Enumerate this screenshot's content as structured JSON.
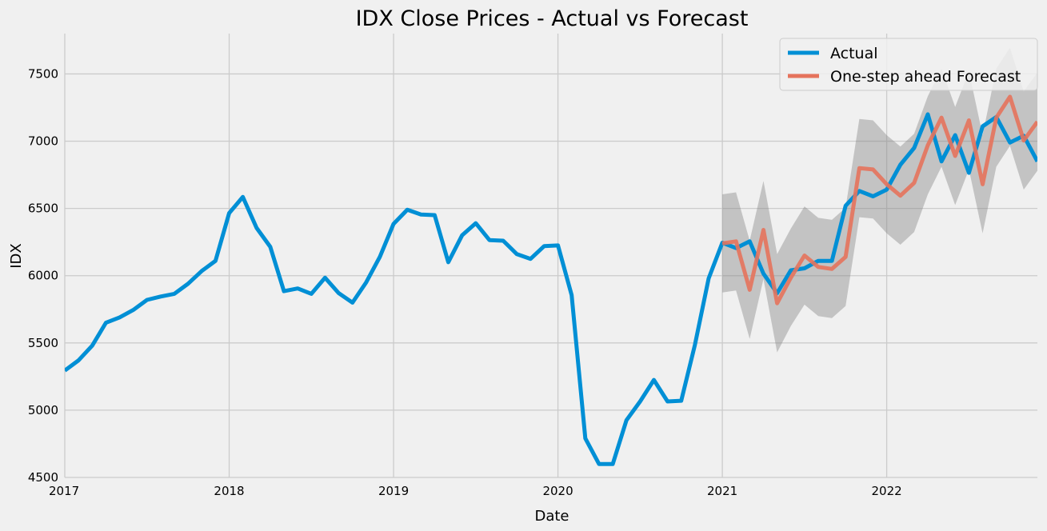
{
  "chart_data": {
    "type": "line",
    "title": "IDX Close Prices - Actual vs Forecast",
    "xlabel": "Date",
    "ylabel": "IDX",
    "xlim": [
      "2017-01",
      "2022-12"
    ],
    "ylim": [
      4500,
      7800
    ],
    "x_ticks": [
      "2017",
      "2018",
      "2019",
      "2020",
      "2021",
      "2022"
    ],
    "y_ticks": [
      4500,
      5000,
      5500,
      6000,
      6500,
      7000,
      7500
    ],
    "grid": true,
    "legend_position": "top-right",
    "series": [
      {
        "name": "Actual",
        "color": "#008fd5",
        "x": [
          "2017-01",
          "2017-02",
          "2017-03",
          "2017-04",
          "2017-05",
          "2017-06",
          "2017-07",
          "2017-08",
          "2017-09",
          "2017-10",
          "2017-11",
          "2017-12",
          "2018-01",
          "2018-02",
          "2018-03",
          "2018-04",
          "2018-05",
          "2018-06",
          "2018-07",
          "2018-08",
          "2018-09",
          "2018-10",
          "2018-11",
          "2018-12",
          "2019-01",
          "2019-02",
          "2019-03",
          "2019-04",
          "2019-05",
          "2019-06",
          "2019-07",
          "2019-08",
          "2019-09",
          "2019-10",
          "2019-11",
          "2019-12",
          "2020-01",
          "2020-02",
          "2020-03",
          "2020-04",
          "2020-05",
          "2020-06",
          "2020-07",
          "2020-08",
          "2020-09",
          "2020-10",
          "2020-11",
          "2020-12",
          "2021-01",
          "2021-02",
          "2021-03",
          "2021-04",
          "2021-05",
          "2021-06",
          "2021-07",
          "2021-08",
          "2021-09",
          "2021-10",
          "2021-11",
          "2021-12",
          "2022-01",
          "2022-02",
          "2022-03",
          "2022-04",
          "2022-05",
          "2022-06",
          "2022-07",
          "2022-08",
          "2022-09",
          "2022-10",
          "2022-11",
          "2022-12"
        ],
        "values": [
          5295,
          5370,
          5480,
          5650,
          5690,
          5745,
          5820,
          5845,
          5865,
          5940,
          6035,
          6110,
          6465,
          6585,
          6355,
          6215,
          5885,
          5905,
          5865,
          5985,
          5870,
          5800,
          5950,
          6140,
          6385,
          6490,
          6455,
          6450,
          6100,
          6300,
          6390,
          6265,
          6260,
          6160,
          6125,
          6220,
          6225,
          5855,
          4790,
          4600,
          4600,
          4925,
          5065,
          5225,
          5065,
          5070,
          5485,
          5980,
          6245,
          6205,
          6255,
          6015,
          5870,
          6040,
          6055,
          6110,
          6110,
          6520,
          6630,
          6590,
          6640,
          6825,
          6950,
          7200,
          6850,
          7045,
          6765,
          7110,
          7180,
          6990,
          7040,
          6850
        ]
      },
      {
        "name": "One-step ahead Forecast",
        "color": "#e5735c",
        "x": [
          "2021-01",
          "2021-02",
          "2021-03",
          "2021-04",
          "2021-05",
          "2021-06",
          "2021-07",
          "2021-08",
          "2021-09",
          "2021-10",
          "2021-11",
          "2021-12",
          "2022-01",
          "2022-02",
          "2022-03",
          "2022-04",
          "2022-05",
          "2022-06",
          "2022-07",
          "2022-08",
          "2022-09",
          "2022-10",
          "2022-11",
          "2022-12"
        ],
        "values": [
          6240,
          6255,
          5895,
          6340,
          5795,
          5985,
          6150,
          6065,
          6050,
          6140,
          6800,
          6790,
          6680,
          6595,
          6690,
          6970,
          7175,
          6890,
          7155,
          6680,
          7175,
          7330,
          7005,
          7145
        ],
        "ci_lower": [
          5875,
          5890,
          5530,
          5975,
          5430,
          5625,
          5785,
          5700,
          5685,
          5775,
          6435,
          6425,
          6315,
          6230,
          6325,
          6605,
          6810,
          6525,
          6790,
          6315,
          6810,
          6965,
          6640,
          6780
        ],
        "ci_upper": [
          6605,
          6620,
          6260,
          6705,
          6160,
          6350,
          6515,
          6430,
          6415,
          6505,
          7165,
          7155,
          7045,
          6960,
          7055,
          7335,
          7540,
          7255,
          7520,
          7045,
          7540,
          7695,
          7370,
          7510
        ]
      }
    ]
  }
}
